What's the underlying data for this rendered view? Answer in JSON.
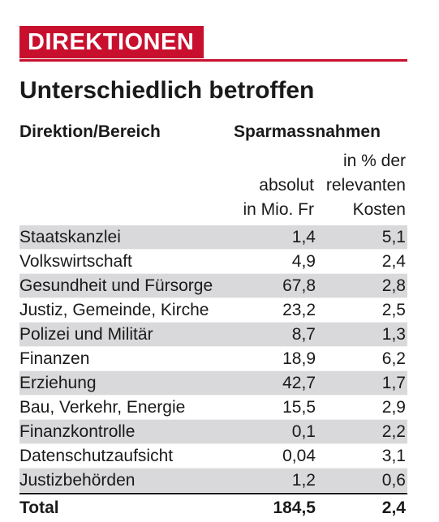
{
  "kicker": "DIREKTIONEN",
  "title": "Unterschiedlich betroffen",
  "header": {
    "col_name": "Direktion/Bereich",
    "col_group": "Sparmassnahmen",
    "abs_line1": "absolut",
    "abs_line2": "in Mio. Fr",
    "pct_line1": "in % der",
    "pct_line2": "relevanten",
    "pct_line3": "Kosten"
  },
  "rows": [
    {
      "name": "Staatskanzlei",
      "abs": "1,4",
      "pct": "5,1"
    },
    {
      "name": "Volkswirtschaft",
      "abs": "4,9",
      "pct": "2,4"
    },
    {
      "name": "Gesundheit und Fürsorge",
      "abs": "67,8",
      "pct": "2,8"
    },
    {
      "name": "Justiz, Gemeinde, Kirche",
      "abs": "23,2",
      "pct": "2,5"
    },
    {
      "name": "Polizei und Militär",
      "abs": "8,7",
      "pct": "1,3"
    },
    {
      "name": "Finanzen",
      "abs": "18,9",
      "pct": "6,2"
    },
    {
      "name": "Erziehung",
      "abs": "42,7",
      "pct": "1,7"
    },
    {
      "name": "Bau, Verkehr, Energie",
      "abs": "15,5",
      "pct": "2,9"
    },
    {
      "name": "Finanzkontrolle",
      "abs": "0,1",
      "pct": "2,2"
    },
    {
      "name": "Datenschutzaufsicht",
      "abs": "0,04",
      "pct": "3,1"
    },
    {
      "name": "Justizbehörden",
      "abs": "1,2",
      "pct": "0,6"
    }
  ],
  "total": {
    "name": "Total",
    "abs": "184,5",
    "pct": "2,4"
  },
  "colors": {
    "accent": "#c8102e",
    "row_shade": "#d9d9db",
    "text": "#1a1a1a"
  }
}
